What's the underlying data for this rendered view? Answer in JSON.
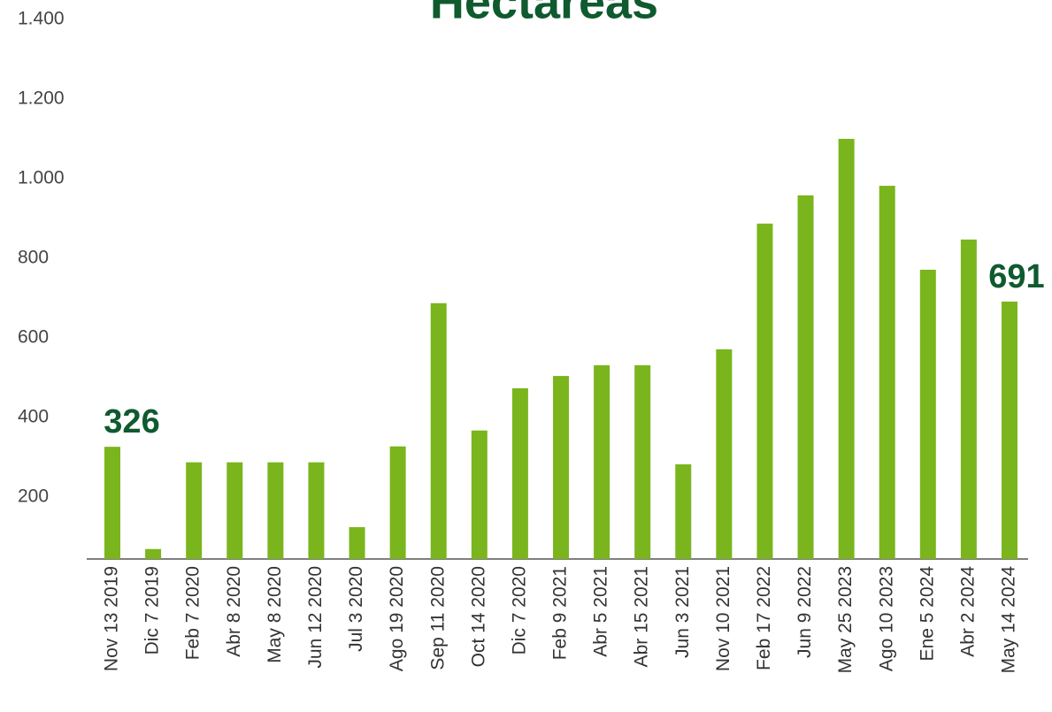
{
  "chart_data": {
    "type": "bar",
    "title": "Hectareas",
    "categories": [
      "Nov 13 2019",
      "Dic 7 2019",
      "Feb 7 2020",
      "Abr 8 2020",
      "May 8 2020",
      "Jun 12 2020",
      "Jul 3 2020",
      "Ago 19 2020",
      "Sep 11 2020",
      "Oct 14 2020",
      "Dic 7 2020",
      "Feb 9 2021",
      "Abr 5 2021",
      "Abr 15 2021",
      "Jun 3 2021",
      "Nov 10 2021",
      "Feb 17 2022",
      "Jun 9 2022",
      "May 25 2023",
      "Ago 10 2023",
      "Ene 5 2024",
      "Abr 2 2024",
      "May 14 2024"
    ],
    "values": [
      326,
      69,
      287,
      287,
      287,
      287,
      124,
      327,
      687,
      367,
      473,
      504,
      531,
      531,
      282,
      571,
      887,
      958,
      1100,
      982,
      771,
      847,
      691
    ],
    "value_labels": [
      "326",
      null,
      null,
      null,
      null,
      null,
      null,
      null,
      null,
      null,
      null,
      null,
      null,
      null,
      null,
      null,
      null,
      null,
      null,
      null,
      null,
      null,
      "691"
    ],
    "color": "#7ab51d",
    "ylim": [
      44,
      1449
    ],
    "yticks": [
      {
        "value": 200,
        "label": "200"
      },
      {
        "value": 400,
        "label": "400"
      },
      {
        "value": 600,
        "label": "600"
      },
      {
        "value": 800,
        "label": "800"
      },
      {
        "value": 1000,
        "label": "1.000"
      },
      {
        "value": 1200,
        "label": "1.200"
      },
      {
        "value": 1400,
        "label": "1.400"
      }
    ],
    "grid": false
  }
}
